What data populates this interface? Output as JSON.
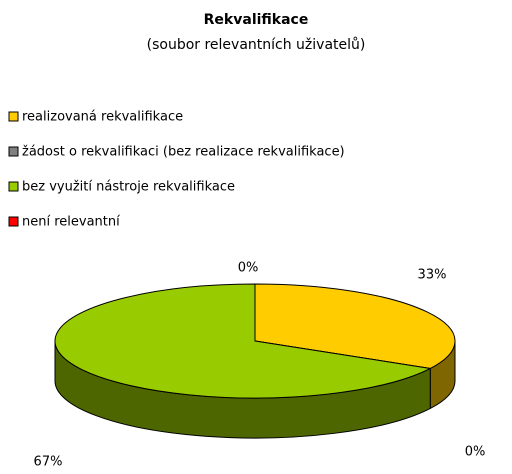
{
  "chart_data": {
    "type": "pie3d",
    "title": "Rekvalifikace",
    "subtitle": "(soubor relevantních uživatelů)",
    "categories": [
      "realizovaná rekvalifikace",
      "žádost o rekvalifikaci (bez realizace rekvalifikace)",
      "bez využití nástroje rekvalifikace",
      "není relevantní"
    ],
    "values": [
      33,
      0,
      67,
      0
    ],
    "value_labels": [
      "33%",
      "0%",
      "67%",
      "0%"
    ],
    "colors": [
      "#FFCC00",
      "#808080",
      "#99CC00",
      "#FF0000"
    ],
    "legend": "top-left"
  }
}
